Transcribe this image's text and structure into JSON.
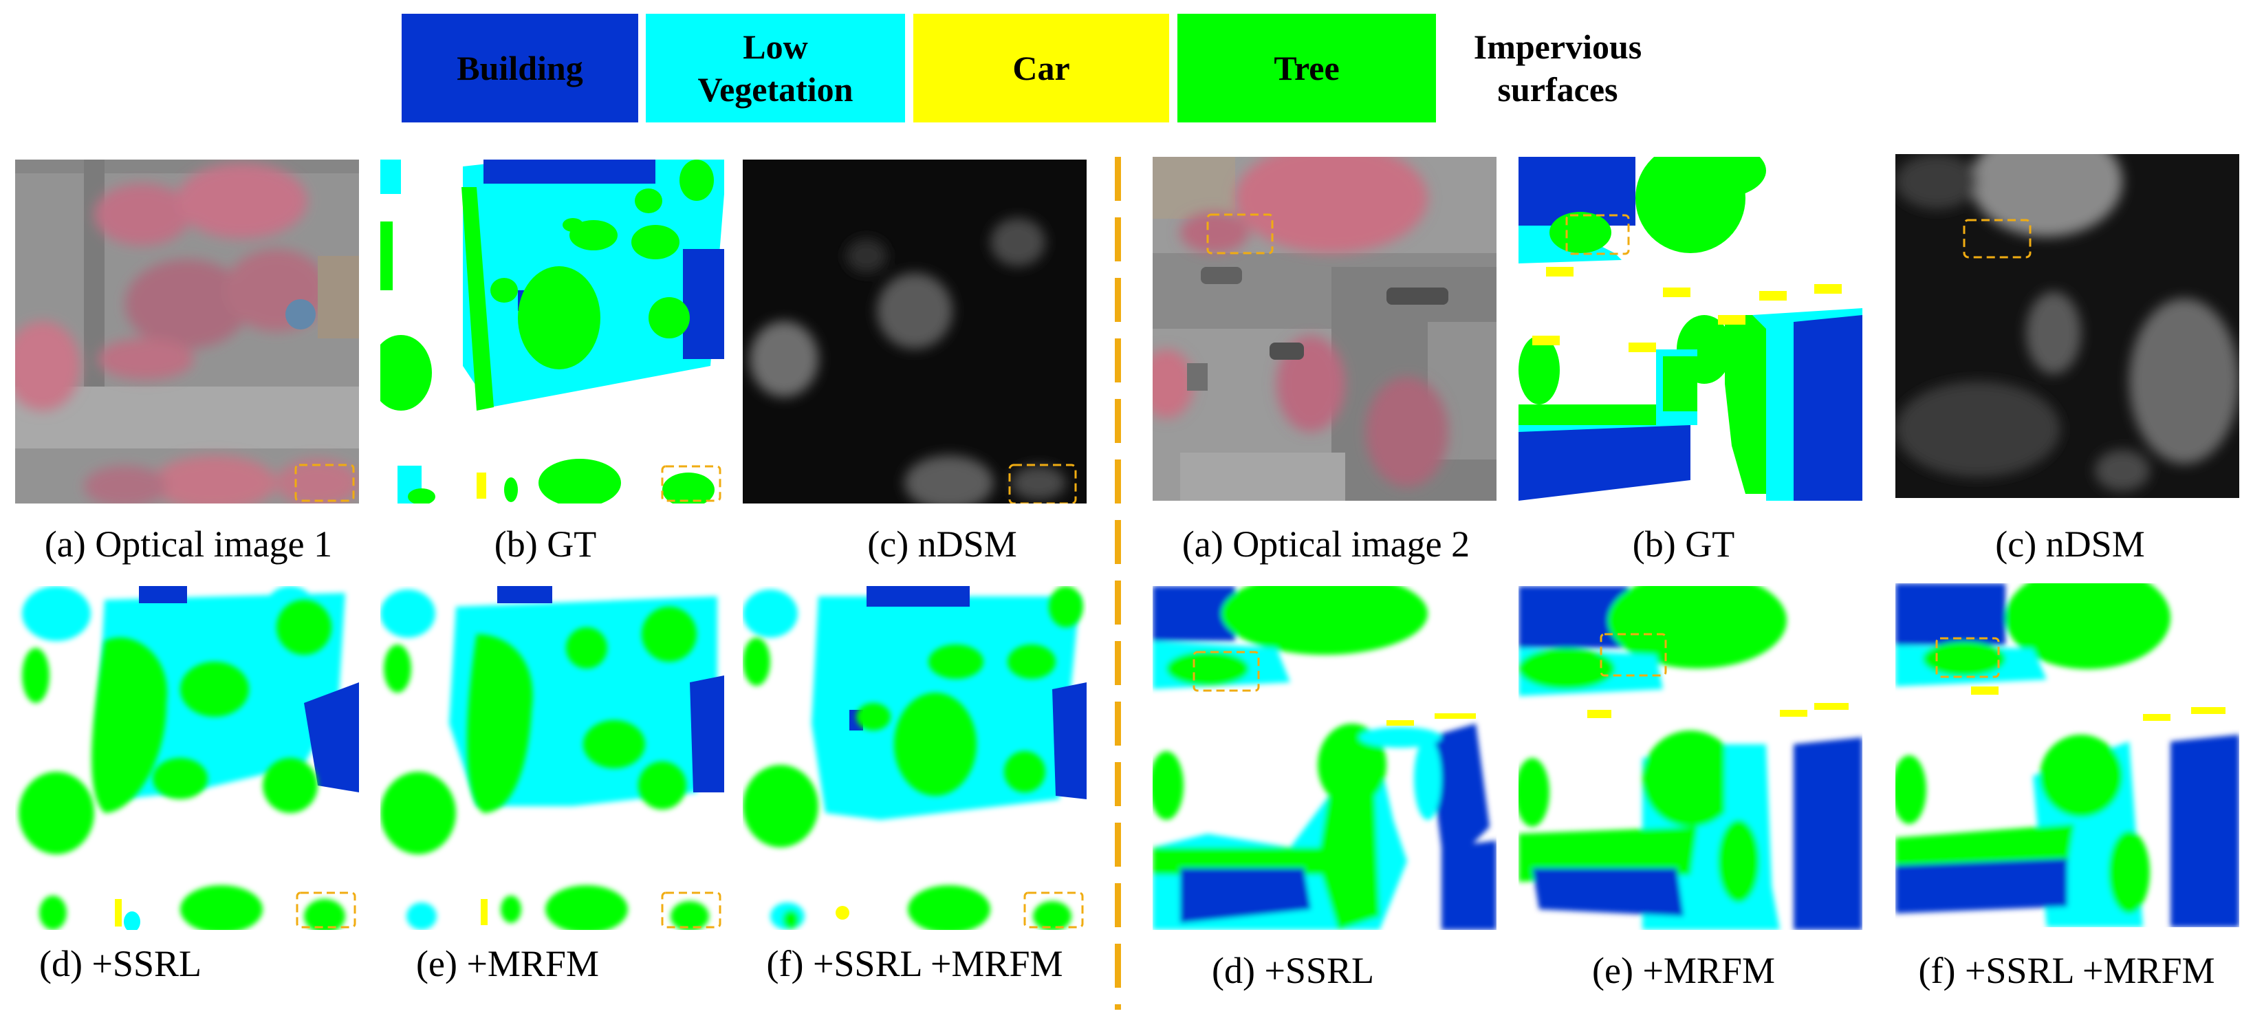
{
  "legend": [
    {
      "label": "Building",
      "color": "#0534d0",
      "text_color": "#000000"
    },
    {
      "label": "Low Vegetation",
      "color": "#00ffff",
      "text_color": "#000000"
    },
    {
      "label": "Car",
      "color": "#ffff00",
      "text_color": "#000000"
    },
    {
      "label": "Tree",
      "color": "#00ff00",
      "text_color": "#000000"
    },
    {
      "label": "Impervious surfaces",
      "color": "#ffffff",
      "text_color": "#000000"
    }
  ],
  "class_colors": {
    "building": "#0534d0",
    "low_vegetation": "#00ffff",
    "car": "#ffff00",
    "tree": "#00ff00",
    "impervious": "#ffffff",
    "highlight_box": "#f0ac12"
  },
  "left_group": {
    "captions": {
      "optical": "(a) Optical image 1",
      "gt": "(b) GT",
      "ndsm": "(c) nDSM",
      "ssrl": "(d) +SSRL",
      "mrfm": "(e) +MRFM",
      "both": "(f) +SSRL +MRFM"
    }
  },
  "right_group": {
    "captions": {
      "optical": "(a) Optical image 2",
      "gt": "(b) GT",
      "ndsm": "(c) nDSM",
      "ssrl": "(d) +SSRL",
      "mrfm": "(e) +MRFM",
      "both": "(f) +SSRL +MRFM"
    }
  }
}
